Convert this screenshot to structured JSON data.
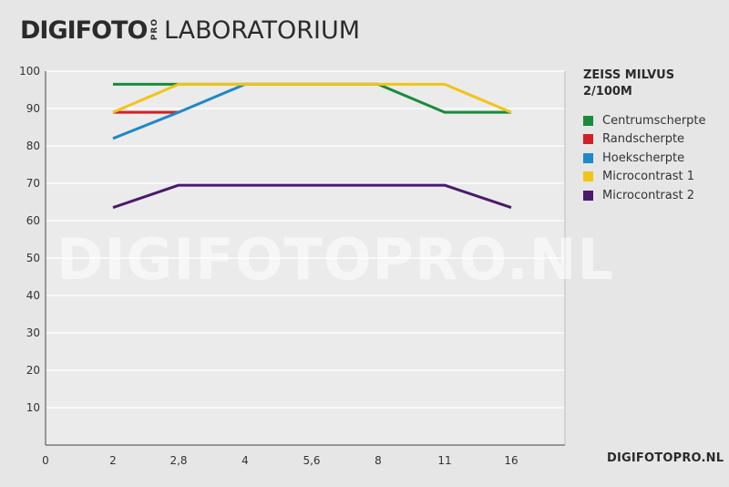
{
  "header": {
    "brand_word": "DIGIFOTO",
    "brand_pro": "PRO",
    "title": "LABORATORIUM"
  },
  "watermark": "DIGIFOTOPRO.NL",
  "site_url": "DIGIFOTOPRO.NL",
  "colors": {
    "background": "#e6e6e6",
    "plot_background": "#ebebeb",
    "grid": "#ffffff",
    "axis": "#444444"
  },
  "chart_data": {
    "type": "line",
    "title": "ZEISS MILVUS 2/100M",
    "x_tick_labels": [
      "0",
      "2",
      "2,8",
      "4",
      "5,6",
      "8",
      "11",
      "16"
    ],
    "y_ticks": [
      10,
      20,
      30,
      40,
      50,
      60,
      70,
      80,
      90,
      100
    ],
    "ylim": [
      0,
      100
    ],
    "grid": true,
    "legend_position": "right",
    "series": [
      {
        "name": "Centrumscherpte",
        "color": "#1a8a3c",
        "x": [
          2,
          2.8,
          4,
          5.6,
          8,
          11,
          16
        ],
        "y": [
          96.5,
          96.5,
          96.5,
          96.5,
          96.5,
          89,
          89
        ]
      },
      {
        "name": "Randscherpte",
        "color": "#d41f26",
        "x": [
          2,
          2.8
        ],
        "y": [
          89,
          89
        ]
      },
      {
        "name": "Hoekscherpte",
        "color": "#1e88c8",
        "x": [
          2,
          2.8,
          4,
          5.6,
          8
        ],
        "y": [
          82,
          89,
          96.5,
          96.5,
          96.5
        ]
      },
      {
        "name": "Microcontrast 1",
        "color": "#f2c417",
        "x": [
          2,
          2.8,
          4,
          5.6,
          8,
          11,
          16
        ],
        "y": [
          89,
          96.5,
          96.5,
          96.5,
          96.5,
          96.5,
          89
        ]
      },
      {
        "name": "Microcontrast 2",
        "color": "#4b1a6b",
        "x": [
          2,
          2.8,
          4,
          5.6,
          8,
          11,
          16
        ],
        "y": [
          63.5,
          69.5,
          69.5,
          69.5,
          69.5,
          69.5,
          63.5
        ]
      }
    ]
  }
}
